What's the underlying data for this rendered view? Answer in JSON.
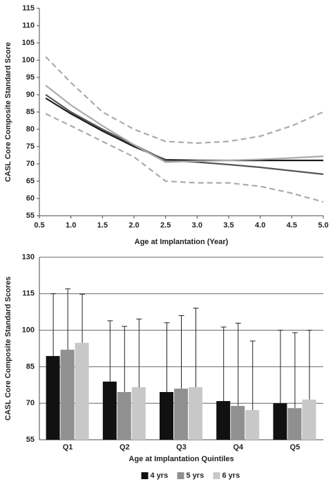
{
  "chart_data": [
    {
      "type": "line",
      "x_label": "Age at Implantation (Year)",
      "y_label": "CASL Core Composite Standard Score",
      "x": [
        0.6,
        1.0,
        1.5,
        2.0,
        2.5,
        3.0,
        3.5,
        4.0,
        4.5,
        5.0
      ],
      "series": [
        {
          "color": "#1a1a1a",
          "style": "solid",
          "values": [
            89,
            84.5,
            79.5,
            75,
            71.2,
            71,
            71,
            71,
            71,
            71
          ]
        },
        {
          "color": "#555555",
          "style": "solid",
          "values": [
            90,
            85,
            80,
            75.5,
            71,
            70.5,
            69.8,
            69,
            68,
            67
          ]
        },
        {
          "color": "#aaaaaa",
          "style": "solid",
          "values": [
            92.7,
            87,
            81,
            75.5,
            70.5,
            70.8,
            71,
            71.3,
            71.7,
            72.2
          ]
        },
        {
          "color": "#aaaaaa",
          "style": "dashed",
          "values": [
            101,
            93.5,
            85,
            80,
            76.5,
            76,
            76.5,
            78,
            81,
            85
          ]
        },
        {
          "color": "#aaaaaa",
          "style": "dashed",
          "values": [
            84.5,
            81,
            76.5,
            72,
            65,
            64.5,
            64.5,
            63.5,
            61.5,
            59
          ]
        }
      ],
      "xlim": [
        0.5,
        5.0
      ],
      "xticks": [
        0.5,
        {
          "value": 1,
          "label": "1.0"
        },
        1.5,
        {
          "value": 2,
          "label": "2.0"
        },
        2.5,
        {
          "value": 3,
          "label": "3.0"
        },
        3.5,
        {
          "value": 4,
          "label": "4.0"
        },
        4.5,
        {
          "value": 5,
          "label": "5.0"
        }
      ],
      "ylim": [
        55,
        115
      ],
      "yticks": [
        55,
        60,
        65,
        70,
        75,
        80,
        85,
        90,
        95,
        100,
        105,
        110,
        115
      ],
      "grid": false
    },
    {
      "type": "bar",
      "x_label": "Age at Implantation Quintiles",
      "y_label": "CASL Core Composite Standard Scores",
      "categories": [
        "Q1",
        "Q2",
        "Q3",
        "Q4",
        "Q5"
      ],
      "series": [
        {
          "name": "4 yrs",
          "color": "#111111",
          "values": [
            89.4,
            78.9,
            74.6,
            70.9,
            70
          ],
          "errors": [
            25.6,
            25,
            28.5,
            30.4,
            30
          ]
        },
        {
          "name": "5 yrs",
          "color": "#909090",
          "values": [
            92,
            74.6,
            76,
            68.9,
            68
          ],
          "errors": [
            25,
            27,
            30,
            34,
            31
          ]
        },
        {
          "name": "6 yrs",
          "color": "#c8c8c8",
          "values": [
            94.8,
            76.6,
            76.6,
            67.2,
            71.5
          ],
          "errors": [
            20,
            28,
            32.5,
            28.4,
            28.5
          ]
        }
      ],
      "ylim": [
        55,
        130
      ],
      "yticks": [
        55,
        70,
        85,
        100,
        115,
        130
      ],
      "grid": true,
      "legend": "bottom"
    }
  ]
}
